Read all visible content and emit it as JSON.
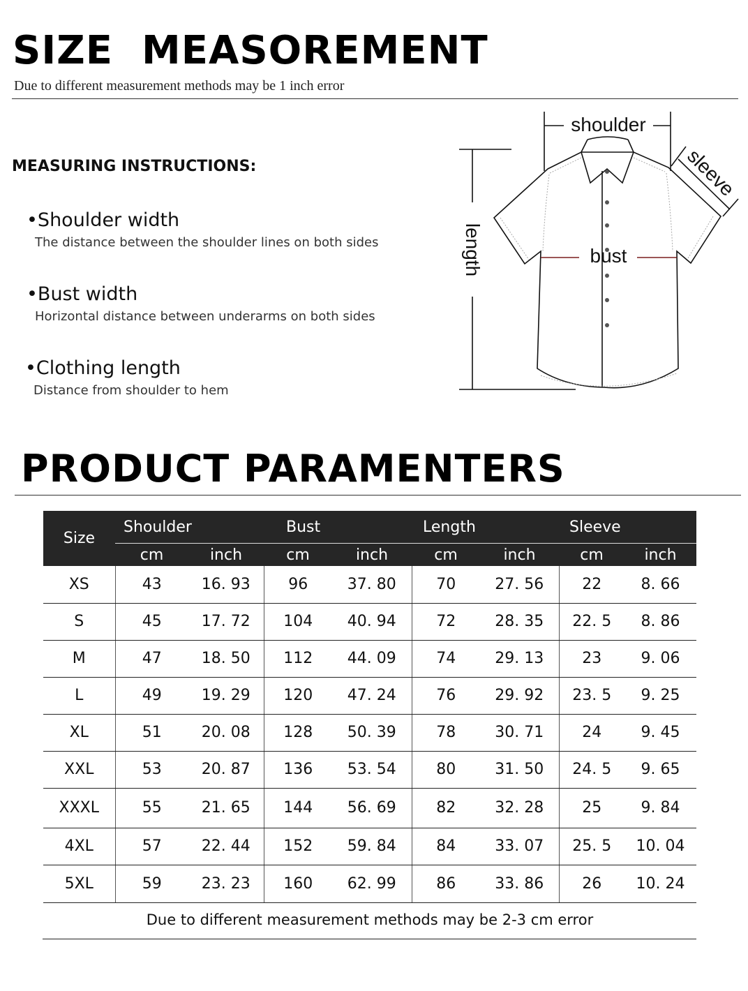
{
  "header": {
    "title": "SIZE  MEASOREMENT",
    "subtitle": "Due to different measurement methods may be 1 inch error"
  },
  "instructions": {
    "heading": "MEASURING INSTRUCTIONS:",
    "items": [
      {
        "title": "•Shoulder width",
        "desc": "The distance between the shoulder lines on both sides"
      },
      {
        "title": "•Bust width",
        "desc": "Horizontal distance between underarms on both sides"
      },
      {
        "title": "•Clothing length",
        "desc": "Distance from shoulder to hem"
      }
    ]
  },
  "diagram": {
    "shoulder": "shoulder",
    "sleeve": "sleeve",
    "bust": "bust",
    "length": "length",
    "bust_line_color": "#7a1f1f"
  },
  "params": {
    "title": "PRODUCT PARAMENTERS",
    "size_label": "Size",
    "groups": [
      "Shoulder",
      "Bust",
      "Length",
      "Sleeve"
    ],
    "units": [
      "cm",
      "inch",
      "cm",
      "inch",
      "cm",
      "inch",
      "cm",
      "inch"
    ],
    "rows": [
      [
        "XS",
        "43",
        "16. 93",
        "96",
        "37. 80",
        "70",
        "27. 56",
        "22",
        "8. 66"
      ],
      [
        "S",
        "45",
        "17. 72",
        "104",
        "40. 94",
        "72",
        "28. 35",
        "22. 5",
        "8. 86"
      ],
      [
        "M",
        "47",
        "18. 50",
        "112",
        "44. 09",
        "74",
        "29. 13",
        "23",
        "9. 06"
      ],
      [
        "L",
        "49",
        "19. 29",
        "120",
        "47. 24",
        "76",
        "29. 92",
        "23. 5",
        "9. 25"
      ],
      [
        "XL",
        "51",
        "20. 08",
        "128",
        "50. 39",
        "78",
        "30. 71",
        "24",
        "9. 45"
      ],
      [
        "XXL",
        "53",
        "20. 87",
        "136",
        "53. 54",
        "80",
        "31. 50",
        "24. 5",
        "9. 65"
      ],
      [
        "XXXL",
        "55",
        "21. 65",
        "144",
        "56. 69",
        "82",
        "32. 28",
        "25",
        "9. 84"
      ],
      [
        "4XL",
        "57",
        "22. 44",
        "152",
        "59. 84",
        "84",
        "33. 07",
        "25. 5",
        "10. 04"
      ],
      [
        "5XL",
        "59",
        "23. 23",
        "160",
        "62. 99",
        "86",
        "33. 86",
        "26",
        "10. 24"
      ]
    ],
    "footer": "Due to different measurement methods may be 2-3 cm error"
  }
}
